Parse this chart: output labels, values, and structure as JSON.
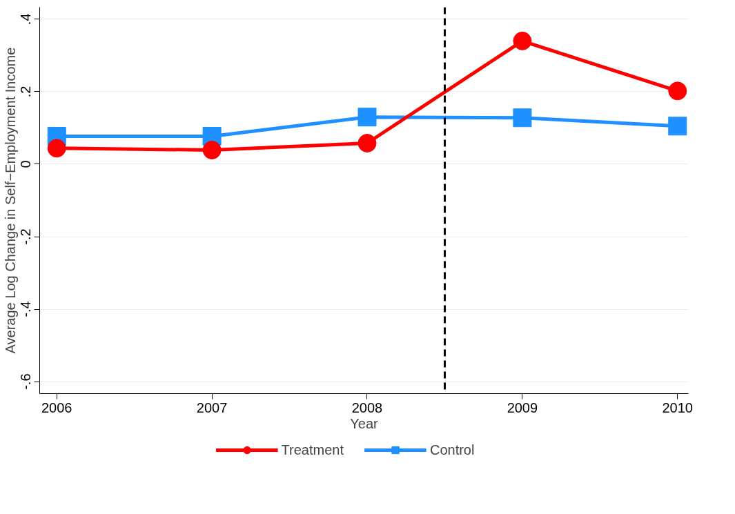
{
  "chart_data": {
    "type": "line",
    "xlabel": "Year",
    "ylabel": "Average Log Change in Self−Employment Income",
    "x": [
      2006,
      2007,
      2008,
      2009,
      2010
    ],
    "series": [
      {
        "name": "Treatment",
        "color": "#ff0000",
        "marker": "circle",
        "values": [
          0.044,
          0.039,
          0.058,
          0.34,
          0.202
        ]
      },
      {
        "name": "Control",
        "color": "#1e90ff",
        "marker": "square",
        "values": [
          0.077,
          0.077,
          0.13,
          0.128,
          0.105
        ]
      }
    ],
    "xlim": [
      2005.89,
      2010.07
    ],
    "ylim": [
      -0.633,
      0.433
    ],
    "xticks": [
      2006,
      2007,
      2008,
      2009,
      2010
    ],
    "yticks": [
      {
        "value": -0.6,
        "label": "-.6"
      },
      {
        "value": -0.4,
        "label": "-.4"
      },
      {
        "value": -0.2,
        "label": "-.2"
      },
      0,
      {
        "value": 0.2,
        "label": ".2"
      },
      {
        "value": 0.4,
        "label": ".4"
      }
    ],
    "grid": "y",
    "legend": "bottom",
    "line_style": "solid",
    "ref_lines": [
      {
        "axis": "x",
        "value": 2008.5,
        "label": null,
        "color": "#000000",
        "line_style": "dashed"
      }
    ]
  }
}
